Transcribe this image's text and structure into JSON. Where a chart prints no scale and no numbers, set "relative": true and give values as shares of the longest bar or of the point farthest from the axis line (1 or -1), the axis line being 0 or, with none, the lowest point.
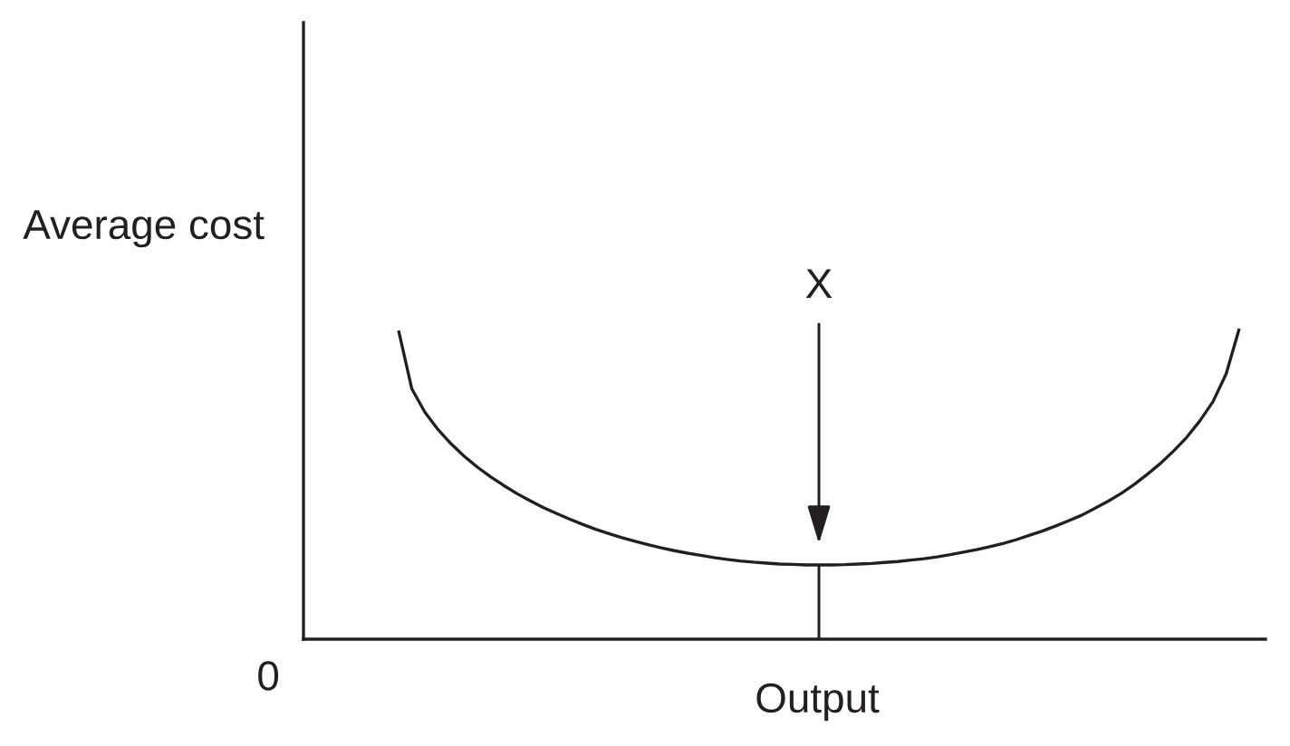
{
  "chart_data": {
    "type": "line",
    "xlabel": "Output",
    "ylabel": "Average cost",
    "annotations": [
      "0",
      "X"
    ],
    "relative": true,
    "marker": "none",
    "categories": [
      null,
      null,
      null,
      null,
      null,
      null,
      null,
      null,
      null,
      null,
      null,
      null,
      null,
      null,
      null,
      null,
      null,
      null,
      null,
      null,
      null,
      null,
      null,
      null,
      null,
      null,
      null,
      null,
      null,
      null,
      null,
      null,
      null,
      null,
      null,
      null,
      null,
      null,
      null,
      null,
      null,
      null,
      null,
      null,
      null,
      null,
      null,
      null,
      null,
      null,
      null,
      null,
      null,
      null,
      null,
      null,
      null,
      null,
      null,
      null,
      null,
      null,
      null,
      null,
      null
    ],
    "series": [
      {
        "color": "#231f20",
        "values": [
          0.994,
          0.807,
          0.731,
          0.675,
          0.629,
          0.589,
          0.554,
          0.523,
          0.495,
          0.469,
          0.446,
          0.424,
          0.405,
          0.387,
          0.37,
          0.354,
          0.34,
          0.327,
          0.315,
          0.304,
          0.294,
          0.285,
          0.277,
          0.27,
          0.263,
          0.257,
          0.252,
          0.248,
          0.245,
          0.242,
          0.241,
          0.239,
          0.239,
          0.239,
          0.24,
          0.242,
          0.244,
          0.247,
          0.25,
          0.255,
          0.259,
          0.265,
          0.272,
          0.28,
          0.288,
          0.298,
          0.308,
          0.32,
          0.334,
          0.348,
          0.364,
          0.381,
          0.399,
          0.421,
          0.444,
          0.469,
          0.498,
          0.531,
          0.566,
          0.606,
          0.65,
          0.703,
          0.765,
          0.854,
          1.0
        ]
      }
    ]
  }
}
